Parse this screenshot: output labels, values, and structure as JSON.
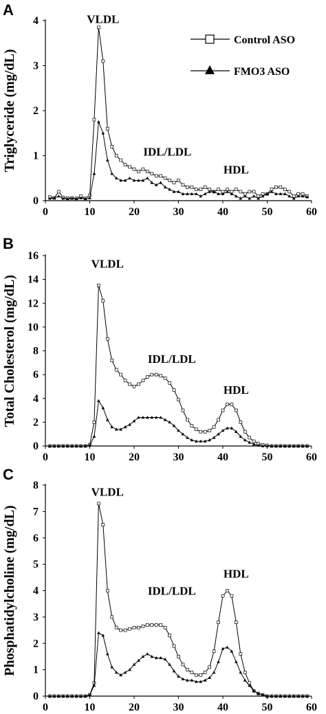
{
  "legend": {
    "control_label": "Control ASO",
    "fmo3_label": "FMO3 ASO"
  },
  "chart_data": [
    {
      "panel": "A",
      "type": "line",
      "ylabel": "Triglyceride (mg/dL)",
      "xlabel": "",
      "xlim": [
        0,
        60
      ],
      "ylim": [
        0,
        4
      ],
      "xticks": [
        "0",
        "10",
        "20",
        "30",
        "40",
        "50",
        "60"
      ],
      "yticks": [
        "0",
        "1",
        "2",
        "3",
        "4"
      ],
      "annotations": [
        {
          "text": "VLDL",
          "x": 13,
          "y": 3.95
        },
        {
          "text": "IDL/LDL",
          "x": 27.5,
          "y": 1.0
        },
        {
          "text": "HDL",
          "x": 43,
          "y": 0.6
        }
      ],
      "x": [
        1,
        2,
        3,
        4,
        5,
        6,
        7,
        8,
        9,
        10,
        11,
        12,
        13,
        14,
        15,
        16,
        17,
        18,
        19,
        20,
        21,
        22,
        23,
        24,
        25,
        26,
        27,
        28,
        29,
        30,
        31,
        32,
        33,
        34,
        35,
        36,
        37,
        38,
        39,
        40,
        41,
        42,
        43,
        44,
        45,
        46,
        47,
        48,
        49,
        50,
        51,
        52,
        53,
        54,
        55,
        56,
        57,
        58,
        59
      ],
      "series": [
        {
          "name": "Control ASO",
          "marker": "square",
          "values": [
            0.08,
            0.06,
            0.2,
            0.07,
            0.06,
            0.06,
            0.05,
            0.1,
            0.05,
            0.12,
            1.8,
            3.85,
            3.1,
            1.6,
            1.2,
            1.0,
            0.9,
            0.8,
            0.75,
            0.7,
            0.65,
            0.7,
            0.65,
            0.6,
            0.55,
            0.55,
            0.5,
            0.45,
            0.4,
            0.45,
            0.35,
            0.3,
            0.3,
            0.25,
            0.25,
            0.3,
            0.25,
            0.2,
            0.25,
            0.2,
            0.25,
            0.2,
            0.25,
            0.2,
            0.15,
            0.2,
            0.2,
            0.1,
            0.15,
            0.15,
            0.25,
            0.3,
            0.3,
            0.25,
            0.2,
            0.1,
            0.15,
            0.15,
            0.1
          ]
        },
        {
          "name": "FMO3 ASO",
          "marker": "triangle",
          "values": [
            0.05,
            0.06,
            0.1,
            0.05,
            0.04,
            0.05,
            0.04,
            0.06,
            0.04,
            0.06,
            0.6,
            1.75,
            1.5,
            0.9,
            0.6,
            0.5,
            0.45,
            0.45,
            0.5,
            0.45,
            0.45,
            0.45,
            0.5,
            0.4,
            0.35,
            0.4,
            0.3,
            0.25,
            0.2,
            0.2,
            0.15,
            0.15,
            0.15,
            0.15,
            0.1,
            0.15,
            0.2,
            0.2,
            0.15,
            0.15,
            0.2,
            0.15,
            0.1,
            0.05,
            0.1,
            0.05,
            0.1,
            0.05,
            0.1,
            0.15,
            0.2,
            0.15,
            0.15,
            0.15,
            0.1,
            0.05,
            0.1,
            0.1,
            0.08
          ]
        }
      ]
    },
    {
      "panel": "B",
      "type": "line",
      "ylabel": "Total Cholesterol (mg/dL)",
      "xlabel": "",
      "xlim": [
        0,
        60
      ],
      "ylim": [
        0,
        16
      ],
      "xticks": [
        "0",
        "10",
        "20",
        "30",
        "40",
        "50",
        "60"
      ],
      "yticks": [
        "0",
        "2",
        "4",
        "6",
        "8",
        "10",
        "12",
        "14",
        "16"
      ],
      "annotations": [
        {
          "text": "VLDL",
          "x": 14,
          "y": 15.0
        },
        {
          "text": "IDL/LDL",
          "x": 28.5,
          "y": 7.0
        },
        {
          "text": "HDL",
          "x": 43,
          "y": 4.4
        }
      ],
      "x": [
        1,
        2,
        3,
        4,
        5,
        6,
        7,
        8,
        9,
        10,
        11,
        12,
        13,
        14,
        15,
        16,
        17,
        18,
        19,
        20,
        21,
        22,
        23,
        24,
        25,
        26,
        27,
        28,
        29,
        30,
        31,
        32,
        33,
        34,
        35,
        36,
        37,
        38,
        39,
        40,
        41,
        42,
        43,
        44,
        45,
        46,
        47,
        48,
        49,
        50,
        51,
        52,
        53,
        54,
        55,
        56,
        57,
        58,
        59
      ],
      "series": [
        {
          "name": "Control ASO",
          "marker": "square",
          "values": [
            0,
            0,
            0,
            0,
            0,
            0,
            0,
            0,
            0,
            0.1,
            2.0,
            13.5,
            12.2,
            9.0,
            7.2,
            6.4,
            6.0,
            5.5,
            5.2,
            5.0,
            5.2,
            5.5,
            5.8,
            6.0,
            6.0,
            5.9,
            5.7,
            5.3,
            4.7,
            3.9,
            3.0,
            2.2,
            1.7,
            1.4,
            1.2,
            1.2,
            1.3,
            1.6,
            2.2,
            3.0,
            3.5,
            3.5,
            3.0,
            2.0,
            1.2,
            0.7,
            0.4,
            0.2,
            0.1,
            0.05,
            0,
            0,
            0,
            0,
            0,
            0,
            0,
            0,
            0
          ]
        },
        {
          "name": "FMO3 ASO",
          "marker": "triangle",
          "values": [
            0,
            0,
            0,
            0,
            0,
            0,
            0,
            0,
            0,
            0.05,
            0.8,
            3.8,
            3.2,
            2.2,
            1.6,
            1.4,
            1.4,
            1.6,
            1.8,
            2.1,
            2.4,
            2.4,
            2.4,
            2.4,
            2.4,
            2.4,
            2.2,
            2.0,
            1.7,
            1.3,
            1.0,
            0.7,
            0.5,
            0.4,
            0.4,
            0.4,
            0.5,
            0.7,
            1.0,
            1.3,
            1.5,
            1.5,
            1.2,
            0.8,
            0.5,
            0.3,
            0.15,
            0.05,
            0,
            0,
            0,
            0,
            0,
            0,
            0,
            0,
            0,
            0,
            0
          ]
        }
      ]
    },
    {
      "panel": "C",
      "type": "line",
      "ylabel": "Phosphatidylcholine (mg/dL)",
      "xlabel": "",
      "xlim": [
        0,
        60
      ],
      "ylim": [
        0,
        8
      ],
      "xticks": [
        "0",
        "10",
        "20",
        "30",
        "40",
        "50",
        "60"
      ],
      "yticks": [
        "0",
        "1",
        "2",
        "3",
        "4",
        "5",
        "6",
        "7",
        "8"
      ],
      "annotations": [
        {
          "text": "VLDL",
          "x": 14,
          "y": 7.6
        },
        {
          "text": "IDL/LDL",
          "x": 28.5,
          "y": 3.85
        },
        {
          "text": "HDL",
          "x": 43,
          "y": 4.5
        }
      ],
      "x": [
        1,
        2,
        3,
        4,
        5,
        6,
        7,
        8,
        9,
        10,
        11,
        12,
        13,
        14,
        15,
        16,
        17,
        18,
        19,
        20,
        21,
        22,
        23,
        24,
        25,
        26,
        27,
        28,
        29,
        30,
        31,
        32,
        33,
        34,
        35,
        36,
        37,
        38,
        39,
        40,
        41,
        42,
        43,
        44,
        45,
        46,
        47,
        48,
        49,
        50,
        51,
        52,
        53,
        54,
        55,
        56,
        57,
        58,
        59
      ],
      "series": [
        {
          "name": "Control ASO",
          "marker": "square",
          "values": [
            0,
            0,
            0,
            0,
            0,
            0,
            0,
            0,
            0,
            0.05,
            0.5,
            7.3,
            6.5,
            4.0,
            3.0,
            2.6,
            2.5,
            2.5,
            2.55,
            2.6,
            2.6,
            2.65,
            2.7,
            2.7,
            2.7,
            2.7,
            2.6,
            2.3,
            1.9,
            1.5,
            1.2,
            1.0,
            0.9,
            0.8,
            0.8,
            0.9,
            1.1,
            1.7,
            2.8,
            3.8,
            4.0,
            3.8,
            2.8,
            1.6,
            0.9,
            0.5,
            0.2,
            0.1,
            0.05,
            0,
            0,
            0,
            0,
            0,
            0,
            0,
            0,
            0,
            0
          ]
        },
        {
          "name": "FMO3 ASO",
          "marker": "triangle",
          "values": [
            0,
            0,
            0,
            0,
            0,
            0,
            0,
            0,
            0,
            0.05,
            0.4,
            2.4,
            2.3,
            1.6,
            1.1,
            0.9,
            0.8,
            0.9,
            1.0,
            1.2,
            1.35,
            1.5,
            1.6,
            1.5,
            1.45,
            1.45,
            1.4,
            1.2,
            0.95,
            0.75,
            0.65,
            0.6,
            0.6,
            0.55,
            0.55,
            0.6,
            0.7,
            0.9,
            1.3,
            1.8,
            1.85,
            1.7,
            1.3,
            0.9,
            0.6,
            0.4,
            0.2,
            0.1,
            0.05,
            0,
            0,
            0,
            0,
            0,
            0,
            0,
            0,
            0,
            0
          ]
        }
      ]
    }
  ]
}
